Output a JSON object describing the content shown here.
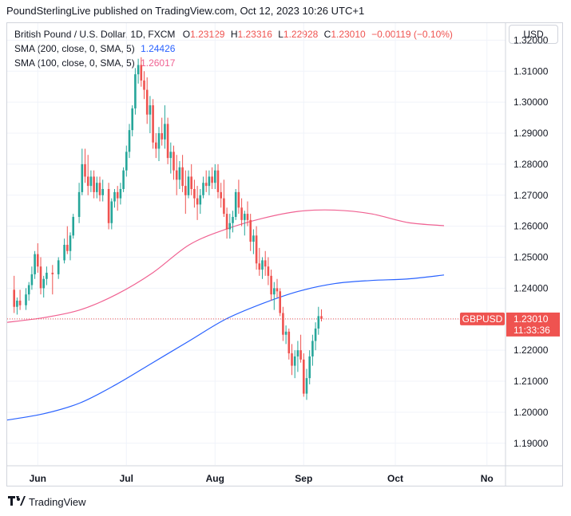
{
  "header": "PoundSterlingLive published on TradingView.com, Oct 12, 2023 10:26 UTC+1",
  "footer": {
    "brand": "TradingView"
  },
  "currency_button": "USD",
  "legend": {
    "symbol": "British Pound / U.S. Dollar, 1D, FXCM",
    "o_label": "O",
    "o": "1.23129",
    "h_label": "H",
    "h": "1.23316",
    "l_label": "L",
    "l": "1.22928",
    "c_label": "C",
    "c": "1.23010",
    "change": "−0.00119 (−0.10%)",
    "sma200_label": "SMA (200, close, 0, SMA, 5)",
    "sma200_value": "1.24426",
    "sma100_label": "SMA (100, close, 0, SMA, 5)",
    "sma100_value": "1.26017"
  },
  "colors": {
    "up": "#26a69a",
    "down": "#ef5350",
    "sma200": "#2962ff",
    "sma100": "#f06292",
    "grid": "#f0f3fa",
    "text": "#131722"
  },
  "chart_data": {
    "type": "candlestick",
    "title": "British Pound / U.S. Dollar, 1D, FXCM",
    "ylim": [
      1.183,
      1.3255
    ],
    "y_ticks": [
      "1.32000",
      "1.31000",
      "1.30000",
      "1.29000",
      "1.28000",
      "1.27000",
      "1.26000",
      "1.25000",
      "1.24000",
      "1.23000",
      "1.22000",
      "1.21000",
      "1.20000",
      "1.19000"
    ],
    "x_ticks": [
      "Jun",
      "Jul",
      "Aug",
      "Sep",
      "Oct",
      "No"
    ],
    "x_tick_index": [
      9,
      39,
      69,
      99,
      130,
      161
    ],
    "price_label": {
      "symbol": "GBPUSD",
      "value": "1.23010",
      "countdown": "11:33:36"
    },
    "last_price": 1.2301,
    "candles": [
      [
        1.2395,
        1.244,
        1.232,
        1.234
      ],
      [
        1.234,
        1.237,
        1.2315,
        1.236
      ],
      [
        1.236,
        1.2395,
        1.233,
        1.2345
      ],
      [
        1.2345,
        1.24,
        1.233,
        1.238
      ],
      [
        1.238,
        1.242,
        1.236,
        1.241
      ],
      [
        1.241,
        1.247,
        1.2395,
        1.2445
      ],
      [
        1.2445,
        1.252,
        1.243,
        1.251
      ],
      [
        1.251,
        1.2545,
        1.245,
        1.247
      ],
      [
        1.247,
        1.25,
        1.238,
        1.24
      ],
      [
        1.24,
        1.244,
        1.237,
        1.243
      ],
      [
        1.243,
        1.247,
        1.241,
        1.245
      ],
      [
        1.245,
        1.2475,
        1.238,
        1.2445
      ],
      [
        1.2445,
        1.25,
        1.243,
        1.249
      ],
      [
        1.249,
        1.256,
        1.248,
        1.254
      ],
      [
        1.254,
        1.26,
        1.251,
        1.252
      ],
      [
        1.252,
        1.258,
        1.249,
        1.257
      ],
      [
        1.257,
        1.264,
        1.256,
        1.263
      ],
      [
        1.263,
        1.274,
        1.261,
        1.271
      ],
      [
        1.271,
        1.285,
        1.27,
        1.28
      ],
      [
        1.28,
        1.285,
        1.274,
        1.276
      ],
      [
        1.276,
        1.283,
        1.27,
        1.273
      ],
      [
        1.273,
        1.278,
        1.271,
        1.276
      ],
      [
        1.276,
        1.278,
        1.269,
        1.271
      ],
      [
        1.271,
        1.276,
        1.269,
        1.274
      ],
      [
        1.274,
        1.276,
        1.268,
        1.27
      ],
      [
        1.27,
        1.275,
        1.268,
        1.272
      ],
      [
        1.272,
        1.274,
        1.259,
        1.261
      ],
      [
        1.261,
        1.269,
        1.259,
        1.268
      ],
      [
        1.268,
        1.272,
        1.266,
        1.271
      ],
      [
        1.271,
        1.273,
        1.265,
        1.269
      ],
      [
        1.269,
        1.274,
        1.267,
        1.272
      ],
      [
        1.272,
        1.279,
        1.271,
        1.278
      ],
      [
        1.278,
        1.286,
        1.276,
        1.284
      ],
      [
        1.284,
        1.293,
        1.282,
        1.291
      ],
      [
        1.291,
        1.299,
        1.289,
        1.298
      ],
      [
        1.298,
        1.311,
        1.296,
        1.309
      ],
      [
        1.309,
        1.314,
        1.306,
        1.312
      ],
      [
        1.312,
        1.3145,
        1.305,
        1.307
      ],
      [
        1.307,
        1.31,
        1.301,
        1.304
      ],
      [
        1.304,
        1.308,
        1.293,
        1.296
      ],
      [
        1.296,
        1.302,
        1.29,
        1.299
      ],
      [
        1.299,
        1.301,
        1.285,
        1.287
      ],
      [
        1.287,
        1.29,
        1.282,
        1.285
      ],
      [
        1.285,
        1.292,
        1.281,
        1.29
      ],
      [
        1.29,
        1.295,
        1.286,
        1.288
      ],
      [
        1.288,
        1.299,
        1.285,
        1.293
      ],
      [
        1.293,
        1.295,
        1.28,
        1.282
      ],
      [
        1.282,
        1.287,
        1.277,
        1.284
      ],
      [
        1.284,
        1.286,
        1.275,
        1.278
      ],
      [
        1.278,
        1.283,
        1.27,
        1.275
      ],
      [
        1.275,
        1.281,
        1.272,
        1.279
      ],
      [
        1.279,
        1.283,
        1.271,
        1.273
      ],
      [
        1.273,
        1.278,
        1.264,
        1.27
      ],
      [
        1.27,
        1.278,
        1.269,
        1.276
      ],
      [
        1.276,
        1.28,
        1.27,
        1.272
      ],
      [
        1.272,
        1.275,
        1.266,
        1.269
      ],
      [
        1.269,
        1.273,
        1.262,
        1.267
      ],
      [
        1.267,
        1.272,
        1.264,
        1.27
      ],
      [
        1.27,
        1.276,
        1.269,
        1.274
      ],
      [
        1.274,
        1.278,
        1.271,
        1.273
      ],
      [
        1.273,
        1.278,
        1.27,
        1.276
      ],
      [
        1.276,
        1.279,
        1.272,
        1.274
      ],
      [
        1.274,
        1.28,
        1.272,
        1.278
      ],
      [
        1.278,
        1.28,
        1.269,
        1.271
      ],
      [
        1.271,
        1.274,
        1.266,
        1.269
      ],
      [
        1.269,
        1.275,
        1.263,
        1.264
      ],
      [
        1.264,
        1.266,
        1.256,
        1.259
      ],
      [
        1.259,
        1.264,
        1.256,
        1.261
      ],
      [
        1.261,
        1.265,
        1.258,
        1.263
      ],
      [
        1.263,
        1.272,
        1.262,
        1.271
      ],
      [
        1.271,
        1.275,
        1.264,
        1.266
      ],
      [
        1.266,
        1.269,
        1.26,
        1.262
      ],
      [
        1.262,
        1.265,
        1.257,
        1.264
      ],
      [
        1.264,
        1.268,
        1.26,
        1.262
      ],
      [
        1.262,
        1.264,
        1.252,
        1.255
      ],
      [
        1.255,
        1.259,
        1.251,
        1.257
      ],
      [
        1.257,
        1.26,
        1.246,
        1.248
      ],
      [
        1.248,
        1.253,
        1.244,
        1.246
      ],
      [
        1.246,
        1.25,
        1.243,
        1.249
      ],
      [
        1.249,
        1.252,
        1.244,
        1.247
      ],
      [
        1.247,
        1.25,
        1.241,
        1.244
      ],
      [
        1.244,
        1.246,
        1.236,
        1.238
      ],
      [
        1.238,
        1.242,
        1.233,
        1.24
      ],
      [
        1.24,
        1.243,
        1.237,
        1.239
      ],
      [
        1.239,
        1.24,
        1.231,
        1.232
      ],
      [
        1.232,
        1.234,
        1.223,
        1.225
      ],
      [
        1.225,
        1.228,
        1.222,
        1.226
      ],
      [
        1.226,
        1.227,
        1.217,
        1.219
      ],
      [
        1.219,
        1.222,
        1.212,
        1.215
      ],
      [
        1.215,
        1.22,
        1.211,
        1.218
      ],
      [
        1.218,
        1.223,
        1.213,
        1.22
      ],
      [
        1.22,
        1.225,
        1.216,
        1.217
      ],
      [
        1.217,
        1.219,
        1.205,
        1.206
      ],
      [
        1.206,
        1.214,
        1.204,
        1.211
      ],
      [
        1.211,
        1.22,
        1.209,
        1.218
      ],
      [
        1.218,
        1.225,
        1.215,
        1.223
      ],
      [
        1.223,
        1.229,
        1.22,
        1.227
      ],
      [
        1.227,
        1.234,
        1.225,
        1.231
      ],
      [
        1.231,
        1.2332,
        1.2293,
        1.2301
      ]
    ],
    "candle_index": [
      1,
      2,
      3,
      5,
      6,
      7,
      8,
      9,
      10,
      11,
      12,
      14,
      16,
      18,
      19,
      20,
      21,
      23,
      24,
      25,
      26,
      27,
      28,
      29,
      30,
      31,
      33,
      34,
      35,
      36,
      37,
      38,
      39,
      40,
      41,
      42,
      43,
      44,
      45,
      46,
      47,
      48,
      49,
      50,
      51,
      52,
      53,
      54,
      55,
      56,
      57,
      58,
      59,
      60,
      61,
      62,
      63,
      64,
      65,
      66,
      67,
      68,
      69,
      70,
      71,
      72,
      73,
      74,
      75,
      76,
      77,
      78,
      79,
      80,
      81,
      82,
      83,
      84,
      85,
      86,
      87,
      88,
      89,
      90,
      91,
      92,
      93,
      94,
      95,
      96,
      97,
      98,
      99,
      100,
      101,
      102,
      103,
      104,
      105
    ],
    "series": [
      {
        "name": "SMA 200",
        "values": [
          1.1975,
          1.1995,
          1.203,
          1.209,
          1.216,
          1.223,
          1.23,
          1.235,
          1.239,
          1.2415,
          1.2425,
          1.243,
          1.24426
        ],
        "x_index": [
          0,
          10,
          20,
          30,
          40,
          50,
          60,
          70,
          80,
          90,
          100,
          110,
          120
        ]
      },
      {
        "name": "SMA 100",
        "values": [
          1.229,
          1.2305,
          1.233,
          1.238,
          1.245,
          1.254,
          1.259,
          1.2625,
          1.2648,
          1.2652,
          1.264,
          1.2612,
          1.26017
        ],
        "x_index": [
          0,
          10,
          20,
          30,
          40,
          50,
          60,
          70,
          80,
          90,
          100,
          110,
          120
        ]
      }
    ]
  }
}
